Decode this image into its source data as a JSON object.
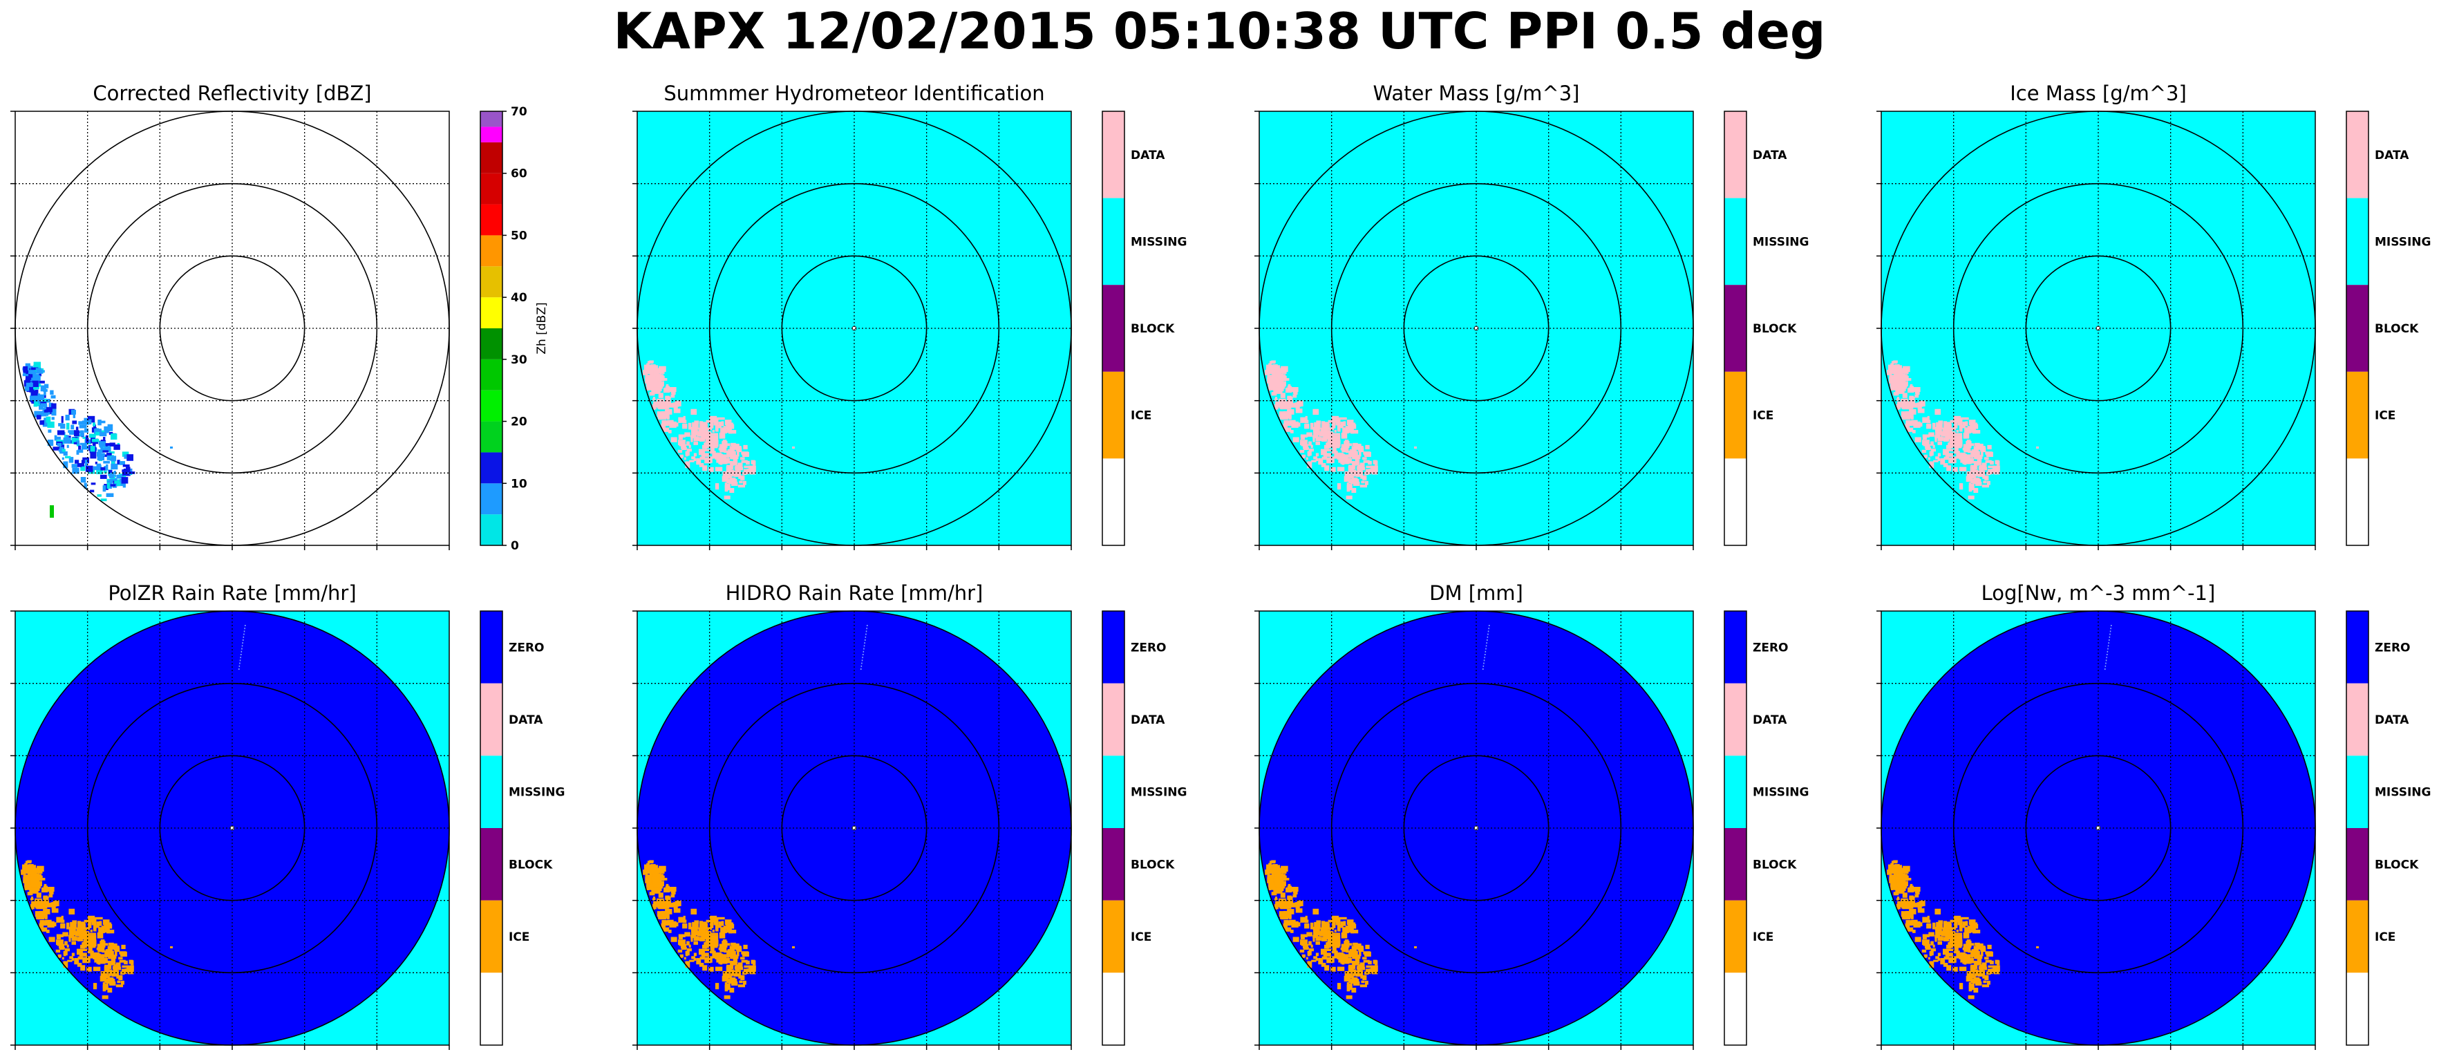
{
  "figure": {
    "suptitle": "KAPX 12/02/2015 05:10:38 UTC PPI 0.5 deg"
  },
  "colors": {
    "missing": "#00ffff",
    "data": "#ffc0cb",
    "block": "#800080",
    "ice": "#ffa500",
    "zero": "#0000ff",
    "blank": "#ffffff",
    "range_ring": "#000000",
    "grid": "#000000"
  },
  "chart_data": [
    {
      "type": "heatmap",
      "title": "Corrected Reflectivity [dBZ]",
      "background": "white",
      "grid": true,
      "range_rings": 3,
      "echo": "weak reflectivity (mostly 5-20 dBZ) in the lower-left (southwest) sector",
      "colorbar": {
        "kind": "continuous",
        "label": "Zh [dBZ]",
        "ticks": [
          "0",
          "10",
          "20",
          "30",
          "40",
          "50",
          "60",
          "70"
        ],
        "range": [
          0,
          70
        ],
        "bins": [
          {
            "from": 0,
            "to": 5,
            "color": "#00e6e6"
          },
          {
            "from": 5,
            "to": 10,
            "color": "#1e9bff"
          },
          {
            "from": 10,
            "to": 15,
            "color": "#0a14e6"
          },
          {
            "from": 15,
            "to": 20,
            "color": "#00d21e"
          },
          {
            "from": 20,
            "to": 25,
            "color": "#00f000"
          },
          {
            "from": 25,
            "to": 30,
            "color": "#00c800"
          },
          {
            "from": 30,
            "to": 35,
            "color": "#009100"
          },
          {
            "from": 35,
            "to": 40,
            "color": "#ffff00"
          },
          {
            "from": 40,
            "to": 45,
            "color": "#e6c000"
          },
          {
            "from": 45,
            "to": 50,
            "color": "#ff9600"
          },
          {
            "from": 50,
            "to": 55,
            "color": "#ff0000"
          },
          {
            "from": 55,
            "to": 60,
            "color": "#d60000"
          },
          {
            "from": 60,
            "to": 65,
            "color": "#c00000"
          },
          {
            "from": 65,
            "to": 67.5,
            "color": "#ff00ff"
          },
          {
            "from": 67.5,
            "to": 70,
            "color": "#9955c9"
          }
        ]
      }
    },
    {
      "type": "heatmap",
      "title": "Summmer Hydrometeor Identification",
      "background": "missing",
      "echo_class": "DATA",
      "grid": true,
      "range_rings": 3,
      "colorbar": {
        "kind": "categorical",
        "categories": [
          "DATA",
          "MISSING",
          "BLOCK",
          "ICE",
          ""
        ]
      }
    },
    {
      "type": "heatmap",
      "title": "Water Mass [g/m^3]",
      "background": "missing",
      "echo_class": "DATA",
      "grid": true,
      "range_rings": 3,
      "colorbar": {
        "kind": "categorical",
        "categories": [
          "DATA",
          "MISSING",
          "BLOCK",
          "ICE",
          ""
        ]
      }
    },
    {
      "type": "heatmap",
      "title": "Ice Mass [g/m^3]",
      "background": "missing",
      "echo_class": "DATA",
      "grid": true,
      "range_rings": 3,
      "colorbar": {
        "kind": "categorical",
        "categories": [
          "DATA",
          "MISSING",
          "BLOCK",
          "ICE",
          ""
        ]
      }
    },
    {
      "type": "heatmap",
      "title": "PolZR Rain Rate [mm/hr]",
      "background": "missing",
      "disc_class": "ZERO",
      "echo_class": "ICE",
      "grid": true,
      "range_rings": 3,
      "colorbar": {
        "kind": "categorical",
        "categories": [
          "ZERO",
          "DATA",
          "MISSING",
          "BLOCK",
          "ICE",
          ""
        ]
      }
    },
    {
      "type": "heatmap",
      "title": "HIDRO Rain Rate [mm/hr]",
      "background": "missing",
      "disc_class": "ZERO",
      "echo_class": "ICE",
      "grid": true,
      "range_rings": 3,
      "colorbar": {
        "kind": "categorical",
        "categories": [
          "ZERO",
          "DATA",
          "MISSING",
          "BLOCK",
          "ICE",
          ""
        ]
      }
    },
    {
      "type": "heatmap",
      "title": "DM [mm]",
      "background": "missing",
      "disc_class": "ZERO",
      "echo_class": "ICE",
      "grid": true,
      "range_rings": 3,
      "colorbar": {
        "kind": "categorical",
        "categories": [
          "ZERO",
          "DATA",
          "MISSING",
          "BLOCK",
          "ICE",
          ""
        ]
      }
    },
    {
      "type": "heatmap",
      "title": "Log[Nw, m^-3 mm^-1]",
      "background": "missing",
      "disc_class": "ZERO",
      "echo_class": "ICE",
      "grid": true,
      "range_rings": 3,
      "colorbar": {
        "kind": "categorical",
        "categories": [
          "ZERO",
          "DATA",
          "MISSING",
          "BLOCK",
          "ICE",
          ""
        ]
      }
    }
  ]
}
